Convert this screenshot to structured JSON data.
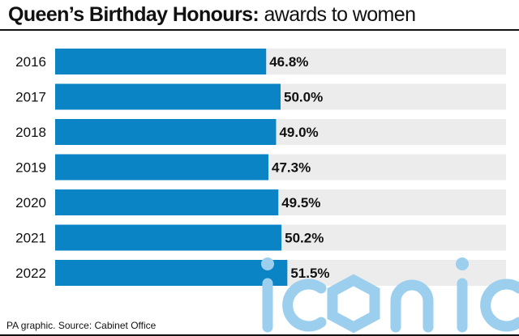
{
  "title": {
    "bold": "Queen’s Birthday Honours:",
    "rest": " awards to women"
  },
  "source": "PA graphic. Source: Cabinet Office",
  "watermark": "iconic",
  "colors": {
    "bar": "#0b84c6",
    "track": "#ececec",
    "text": "#111111",
    "watermark": "#9ccfee"
  },
  "chart_data": {
    "type": "bar",
    "orientation": "horizontal",
    "categories": [
      "2016",
      "2017",
      "2018",
      "2019",
      "2020",
      "2021",
      "2022"
    ],
    "values": [
      46.8,
      50.0,
      49.0,
      47.3,
      49.5,
      50.2,
      51.5
    ],
    "value_labels": [
      "46.8%",
      "50.0%",
      "49.0%",
      "47.3%",
      "49.5%",
      "50.2%",
      "51.5%"
    ],
    "xlim": [
      0,
      100
    ],
    "unit": "%",
    "grid": false,
    "legend": "none"
  }
}
